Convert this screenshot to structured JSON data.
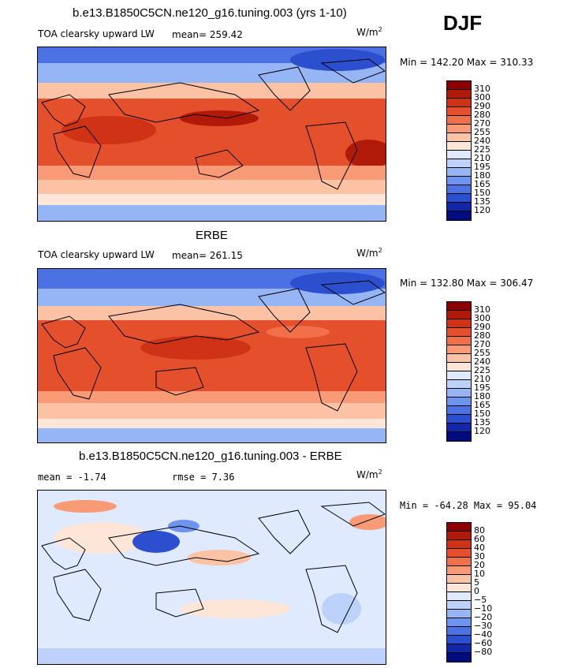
{
  "season": "DJF",
  "colors": {
    "ocean_deep_blue": "#1f3fbf",
    "mid_blue": "#5f8df0",
    "pale_blue": "#dce9ff",
    "peach": "#fbc6a9",
    "orange": "#f47c55",
    "red_orange": "#e4502c",
    "land_outline": "#000000"
  },
  "panels": [
    {
      "title": "b.e13.B1850C5CN.ne120_g16.tuning.003 (yrs 1-10)",
      "left_label": "TOA clearsky upward LW",
      "mean_label": "mean= 259.42",
      "units_base": "W/m",
      "units_exp": "2",
      "minmax": "Min = 142.20 Max = 310.33"
    },
    {
      "title": "ERBE",
      "left_label": "TOA clearsky upward LW",
      "mean_label": "mean= 261.15",
      "units_base": "W/m",
      "units_exp": "2",
      "minmax": "Min = 132.80 Max = 306.47"
    },
    {
      "title": "b.e13.B1850C5CN.ne120_g16.tuning.003 - ERBE",
      "left_label": "mean =  -1.74",
      "mean_label": "rmse =   7.36",
      "units_base": "W/m",
      "units_exp": "2",
      "minmax": "Min = -64.28 Max =  95.04"
    }
  ],
  "chart_data": [
    {
      "type": "heatmap",
      "title": "b.e13.B1850C5CN.ne120_g16.tuning.003 (yrs 1-10)",
      "variable": "TOA clearsky upward LW",
      "mean": 259.42,
      "min": 142.2,
      "max": 310.33,
      "colorbar_levels": [
        "310",
        "300",
        "290",
        "280",
        "270",
        "255",
        "240",
        "225",
        "210",
        "195",
        "180",
        "165",
        "150",
        "135",
        "120"
      ],
      "colorbar_colors": [
        "#8b0000",
        "#b01a08",
        "#d03215",
        "#e4502c",
        "#f1704a",
        "#f89a76",
        "#fbc2a6",
        "#fde6d8",
        "#dfeaff",
        "#bcd2fb",
        "#96b5f5",
        "#6f94ee",
        "#4c71e2",
        "#2b4fcf",
        "#0f27a8",
        "#000c7e"
      ]
    },
    {
      "type": "heatmap",
      "title": "ERBE",
      "variable": "TOA clearsky upward LW",
      "mean": 261.15,
      "min": 132.8,
      "max": 306.47,
      "colorbar_levels": [
        "310",
        "300",
        "290",
        "280",
        "270",
        "255",
        "240",
        "225",
        "210",
        "195",
        "180",
        "165",
        "150",
        "135",
        "120"
      ],
      "colorbar_colors": [
        "#8b0000",
        "#b01a08",
        "#d03215",
        "#e4502c",
        "#f1704a",
        "#f89a76",
        "#fbc2a6",
        "#fde6d8",
        "#dfeaff",
        "#bcd2fb",
        "#96b5f5",
        "#6f94ee",
        "#4c71e2",
        "#2b4fcf",
        "#0f27a8",
        "#000c7e"
      ]
    },
    {
      "type": "heatmap",
      "title": "b.e13.B1850C5CN.ne120_g16.tuning.003 - ERBE",
      "mean": -1.74,
      "rmse": 7.36,
      "min": -64.28,
      "max": 95.04,
      "colorbar_levels": [
        "80",
        "60",
        "40",
        "30",
        "20",
        "10",
        "5",
        "0",
        "−5",
        "−10",
        "−20",
        "−30",
        "−40",
        "−60",
        "−80"
      ],
      "colorbar_colors": [
        "#8b0000",
        "#b01a08",
        "#d03215",
        "#e4502c",
        "#f1704a",
        "#f89a76",
        "#fbc2a6",
        "#fde6d8",
        "#dfeaff",
        "#bcd2fb",
        "#96b5f5",
        "#6f94ee",
        "#4c71e2",
        "#2b4fcf",
        "#0f27a8",
        "#000c7e"
      ]
    }
  ]
}
